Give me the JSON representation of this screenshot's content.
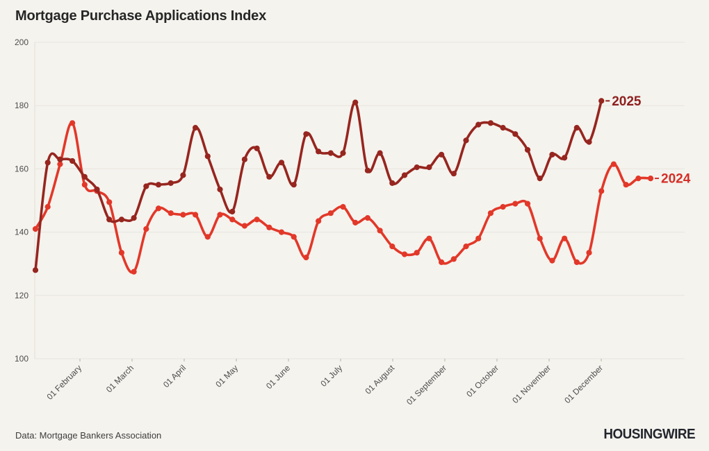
{
  "header": {
    "title": "Mortgage Purchase Applications Index"
  },
  "footer": {
    "source": "Data: Mortgage Bankers Association",
    "brand": "HOUSINGWIRE"
  },
  "colors": {
    "background": "#f5f3ee",
    "grid": "#e7e4dd",
    "axis_line": "#e2dfd7",
    "tick_mark": "#b7b3aa",
    "axis_text": "#4d4d4d",
    "series_2025": "#96261f",
    "series_2025_label": "#8e1f1d",
    "series_2024": "#e23829",
    "series_2024_label": "#d52f27"
  },
  "chart_data": {
    "type": "line",
    "title": "Mortgage Purchase Applications Index",
    "xlabel": "",
    "ylabel": "",
    "ylim": [
      100,
      200
    ],
    "y_ticks": [
      200,
      180,
      160,
      140,
      120,
      100
    ],
    "x_ticks": [
      "01 February",
      "01 March",
      "01 April",
      "01 May",
      "01 June",
      "01 July",
      "01 August",
      "01 September",
      "01 October",
      "01 November",
      "01 December"
    ],
    "grid": "horizontal-only",
    "legend_position": "line-end-labels",
    "x_unit": "week",
    "series": [
      {
        "name": "2024",
        "values": [
          141,
          148,
          161.5,
          174.5,
          155,
          153,
          149.5,
          133.5,
          127.5,
          141,
          147.5,
          146,
          145.5,
          145.5,
          138.5,
          145.5,
          144,
          142,
          144,
          141.5,
          140,
          138.5,
          132,
          143.5,
          146,
          148,
          143,
          144.5,
          140.5,
          135.5,
          133,
          133.5,
          138,
          130.5,
          131.5,
          135.5,
          138,
          146,
          148,
          149,
          149,
          138,
          131,
          138,
          130.5,
          133.5,
          153,
          161.5,
          155,
          157,
          157
        ]
      },
      {
        "name": "2025",
        "values": [
          128,
          162,
          163,
          162.5,
          157.5,
          153.5,
          144,
          144,
          144.5,
          154.5,
          155,
          155.5,
          158,
          173,
          164,
          153.5,
          146.5,
          163,
          166.5,
          157.5,
          162,
          155,
          171,
          165.5,
          165,
          165,
          181,
          159.5,
          165,
          155.5,
          158,
          160.5,
          160.5,
          164.5,
          158.5,
          169,
          174,
          174.5,
          173,
          171,
          166,
          157,
          164.5,
          163.5,
          173,
          168.5,
          181.5
        ]
      }
    ]
  }
}
